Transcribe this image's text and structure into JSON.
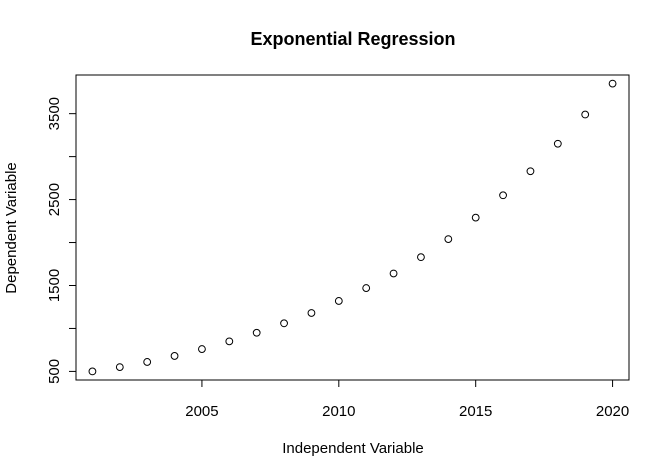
{
  "chart_data": {
    "type": "scatter",
    "title": "Exponential Regression",
    "xlabel": "Independent Variable",
    "ylabel": "Dependent Variable",
    "xlim": [
      2000.4,
      2020.6
    ],
    "ylim": [
      400,
      3950
    ],
    "x_ticks": [
      2005,
      2010,
      2015,
      2020
    ],
    "y_ticks": [
      500,
      1500,
      2500,
      3500
    ],
    "y_minor_ticks": [
      1000,
      2000,
      3000
    ],
    "grid": false,
    "legend": "none",
    "marker": "open-circle",
    "x": [
      2001,
      2002,
      2003,
      2004,
      2005,
      2006,
      2007,
      2008,
      2009,
      2010,
      2011,
      2012,
      2013,
      2014,
      2015,
      2016,
      2017,
      2018,
      2019,
      2020
    ],
    "y": [
      500,
      550,
      610,
      680,
      760,
      850,
      950,
      1060,
      1180,
      1320,
      1470,
      1640,
      1830,
      2040,
      2290,
      2550,
      2830,
      3150,
      3490,
      3850
    ]
  }
}
